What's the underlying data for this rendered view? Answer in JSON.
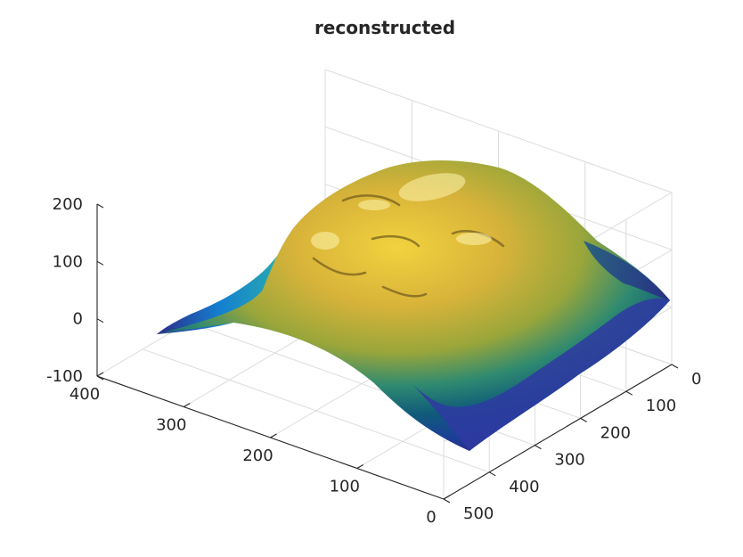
{
  "chart_data": {
    "type": "surface",
    "title": "reconstructed",
    "view": "3d-isometric",
    "grid": true,
    "colormap": "parula",
    "colormap_stops": [
      "#352a87",
      "#0f5cdd",
      "#1481d6",
      "#06a4ca",
      "#2eb7a4",
      "#87bf77",
      "#d1bb59",
      "#fec832",
      "#f9fb0e"
    ],
    "x_axis": {
      "range": [
        0,
        400
      ],
      "ticks": [
        0,
        100,
        200,
        300,
        400
      ]
    },
    "y_axis": {
      "range": [
        0,
        500
      ],
      "ticks": [
        0,
        100,
        200,
        300,
        400,
        500
      ]
    },
    "z_axis": {
      "range": [
        -100,
        200
      ],
      "ticks": [
        -100,
        0,
        100,
        200
      ]
    },
    "surface": {
      "description_free": true,
      "peak_z": 200,
      "edge_min_z": -100
    }
  }
}
